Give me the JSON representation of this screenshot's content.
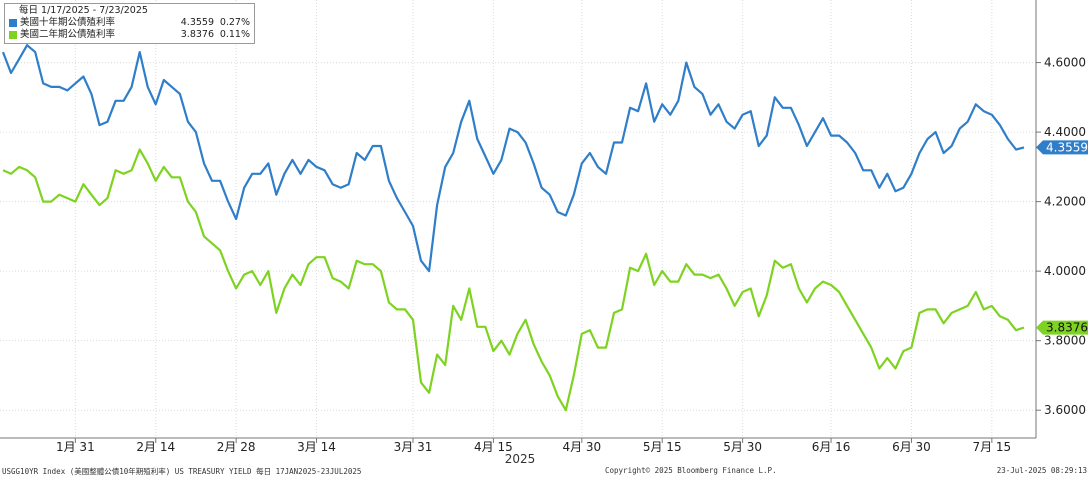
{
  "legend": {
    "header": "每日 1/17/2025 - 7/23/2025",
    "rows": [
      {
        "name": "美國十年期公債殖利率",
        "last": "4.3559",
        "change": "0.27%"
      },
      {
        "name": "美國二年期公債殖利率",
        "last": "3.8376",
        "change": "0.11%"
      }
    ]
  },
  "footer": {
    "left": "USGG10YR Index (美國整體公債10年期殖利率) US TREASURY YIELD  每日 17JAN2025-23JUL2025",
    "center": "Copyright© 2025 Bloomberg Finance L.P.",
    "right": "23-Jul-2025 08:29:13"
  },
  "chart_data": {
    "type": "line",
    "title": "",
    "xlabel": "2025",
    "ylabel": "",
    "ylim": [
      3.52,
      4.78
    ],
    "yticks": [
      3.6,
      3.8,
      4.0,
      4.2,
      4.4,
      4.6
    ],
    "ytick_labels": [
      "3.6000",
      "3.8000",
      "4.0000",
      "4.2000",
      "4.4000",
      "4.6000"
    ],
    "xtick_labels": [
      "1月 31",
      "2月 14",
      "2月 28",
      "3月 14",
      "3月 31",
      "4月 15",
      "4月 30",
      "5月 15",
      "5月 30",
      "6月 16",
      "6月 30",
      "7月 15"
    ],
    "xtick_index": [
      9,
      19,
      29,
      39,
      51,
      61,
      72,
      82,
      92,
      103,
      113,
      123
    ],
    "series": [
      {
        "name": "美國十年期公債殖利率",
        "color": "#2f7ec9",
        "last_label": "4.3559",
        "values": [
          4.63,
          4.57,
          4.61,
          4.65,
          4.63,
          4.54,
          4.53,
          4.53,
          4.52,
          4.54,
          4.56,
          4.51,
          4.42,
          4.43,
          4.49,
          4.49,
          4.53,
          4.63,
          4.53,
          4.48,
          4.55,
          4.53,
          4.51,
          4.43,
          4.4,
          4.31,
          4.26,
          4.26,
          4.2,
          4.15,
          4.24,
          4.28,
          4.28,
          4.31,
          4.22,
          4.28,
          4.32,
          4.28,
          4.32,
          4.3,
          4.29,
          4.25,
          4.24,
          4.25,
          4.34,
          4.32,
          4.36,
          4.36,
          4.26,
          4.21,
          4.17,
          4.13,
          4.03,
          4.0,
          4.19,
          4.3,
          4.34,
          4.43,
          4.49,
          4.38,
          4.33,
          4.28,
          4.32,
          4.41,
          4.4,
          4.37,
          4.31,
          4.24,
          4.22,
          4.17,
          4.16,
          4.22,
          4.31,
          4.34,
          4.3,
          4.28,
          4.37,
          4.37,
          4.47,
          4.46,
          4.54,
          4.43,
          4.48,
          4.45,
          4.49,
          4.6,
          4.53,
          4.51,
          4.45,
          4.48,
          4.43,
          4.41,
          4.45,
          4.46,
          4.36,
          4.39,
          4.5,
          4.47,
          4.47,
          4.42,
          4.36,
          4.4,
          4.44,
          4.39,
          4.39,
          4.37,
          4.34,
          4.29,
          4.29,
          4.24,
          4.28,
          4.23,
          4.24,
          4.28,
          4.34,
          4.38,
          4.4,
          4.34,
          4.36,
          4.41,
          4.43,
          4.48,
          4.46,
          4.45,
          4.42,
          4.38,
          4.35,
          4.3559
        ]
      },
      {
        "name": "美國二年期公債殖利率",
        "color": "#7ed321",
        "last_label": "3.8376",
        "values": [
          4.29,
          4.28,
          4.3,
          4.29,
          4.27,
          4.2,
          4.2,
          4.22,
          4.21,
          4.2,
          4.25,
          4.22,
          4.19,
          4.21,
          4.29,
          4.28,
          4.29,
          4.35,
          4.31,
          4.26,
          4.3,
          4.27,
          4.27,
          4.2,
          4.17,
          4.1,
          4.08,
          4.06,
          4.0,
          3.95,
          3.99,
          4.0,
          3.96,
          4.0,
          3.88,
          3.95,
          3.99,
          3.96,
          4.02,
          4.04,
          4.04,
          3.98,
          3.97,
          3.95,
          4.03,
          4.02,
          4.02,
          4.0,
          3.91,
          3.89,
          3.89,
          3.86,
          3.68,
          3.65,
          3.76,
          3.73,
          3.9,
          3.86,
          3.95,
          3.84,
          3.84,
          3.77,
          3.8,
          3.76,
          3.82,
          3.86,
          3.79,
          3.74,
          3.7,
          3.64,
          3.6,
          3.7,
          3.82,
          3.83,
          3.78,
          3.78,
          3.88,
          3.89,
          4.01,
          4.0,
          4.05,
          3.96,
          4.0,
          3.97,
          3.97,
          4.02,
          3.99,
          3.99,
          3.98,
          3.99,
          3.95,
          3.9,
          3.94,
          3.95,
          3.87,
          3.93,
          4.03,
          4.01,
          4.02,
          3.95,
          3.91,
          3.95,
          3.97,
          3.96,
          3.94,
          3.9,
          3.86,
          3.82,
          3.78,
          3.72,
          3.75,
          3.72,
          3.77,
          3.78,
          3.88,
          3.89,
          3.89,
          3.85,
          3.88,
          3.89,
          3.9,
          3.94,
          3.89,
          3.9,
          3.87,
          3.86,
          3.83,
          3.8376
        ]
      }
    ]
  }
}
